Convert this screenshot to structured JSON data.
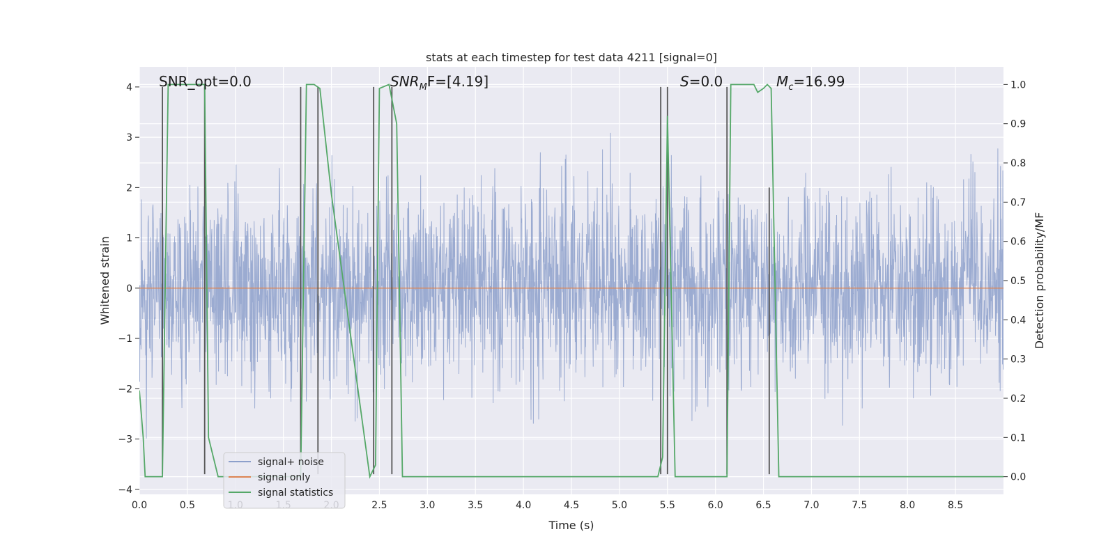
{
  "chart_data": {
    "type": "line",
    "title": "stats at each timestep for test data 4211 [signal=0]",
    "xlabel": "Time (s)",
    "ylabel": "Whitened strain",
    "y2label": "Detection probability/MF",
    "xlim": [
      0,
      9.0
    ],
    "ylim": [
      -4.1,
      4.4
    ],
    "y2lim": [
      -0.045,
      1.045
    ],
    "xticks": [
      0.0,
      0.5,
      1.0,
      1.5,
      2.0,
      2.5,
      3.0,
      3.5,
      4.0,
      4.5,
      5.0,
      5.5,
      6.0,
      6.5,
      7.0,
      7.5,
      8.0,
      8.5
    ],
    "xtick_labels": [
      "0.0",
      "0.5",
      "1.0",
      "1.5",
      "2.0",
      "2.5",
      "3.0",
      "3.5",
      "4.0",
      "4.5",
      "5.0",
      "5.5",
      "6.0",
      "6.5",
      "7.0",
      "7.5",
      "8.0",
      "8.5"
    ],
    "yticks": [
      4,
      3,
      2,
      1,
      0,
      -1,
      -2,
      -3,
      -4
    ],
    "ytick_labels": [
      "4",
      "3",
      "2",
      "1",
      "0",
      "−1",
      "−2",
      "−3",
      "−4"
    ],
    "y2ticks": [
      1.0,
      0.9,
      0.8,
      0.7,
      0.6,
      0.5,
      0.4,
      0.3,
      0.2,
      0.1,
      0.0
    ],
    "y2tick_labels": [
      "1.0",
      "0.9",
      "0.8",
      "0.7",
      "0.6",
      "0.5",
      "0.4",
      "0.3",
      "0.2",
      "0.1",
      "0.0"
    ],
    "annotations": {
      "snr_opt": "SNR_opt=0.0",
      "snr_mf_main": "SNR",
      "snr_mf_sub": "M",
      "snr_mf_tail": "F=[4.19]",
      "s_main": "S",
      "s_tail": "=0.0",
      "mc_main": "M",
      "mc_sub": "c",
      "mc_tail": "=16.99"
    },
    "legend": {
      "position": "lower-left",
      "entries": [
        {
          "label": "signal+ noise",
          "color": "#8da0cb"
        },
        {
          "label": "signal only",
          "color": "#dd8452"
        },
        {
          "label": "signal statistics",
          "color": "#55a868"
        }
      ]
    },
    "series": [
      {
        "name": "signal+ noise",
        "kind": "noise",
        "axis": "left",
        "color": "#8da0cb",
        "sigma": 1.0,
        "num_samples": 2600,
        "duration": 9.0
      },
      {
        "name": "signal only",
        "kind": "line",
        "axis": "left",
        "color": "#dd8452",
        "x": [
          0.0,
          9.0
        ],
        "y": [
          0.0,
          0.0
        ]
      },
      {
        "name": "signal statistics",
        "kind": "line",
        "axis": "right",
        "color": "#55a868",
        "x": [
          0.0,
          0.04,
          0.06,
          0.24,
          0.3,
          0.68,
          0.72,
          0.82,
          1.68,
          1.74,
          1.82,
          1.88,
          2.0,
          2.4,
          2.46,
          2.5,
          2.6,
          2.68,
          2.74,
          3.2,
          3.3,
          5.4,
          5.45,
          5.5,
          5.58,
          6.12,
          6.16,
          6.4,
          6.44,
          6.5,
          6.54,
          6.58,
          6.66,
          6.85,
          6.9,
          9.0
        ],
        "y": [
          0.22,
          0.1,
          0.0,
          0.0,
          1.0,
          1.0,
          0.1,
          0.0,
          0.0,
          1.0,
          1.0,
          0.99,
          0.72,
          0.0,
          0.03,
          0.99,
          1.0,
          0.9,
          0.0,
          0.0,
          0.0,
          0.0,
          0.05,
          0.92,
          0.0,
          0.0,
          1.0,
          1.0,
          0.98,
          0.99,
          1.0,
          0.99,
          0.0,
          0.0,
          0.0,
          0.0
        ]
      },
      {
        "name": "detection markers",
        "kind": "vlines",
        "axis": "left",
        "color": "#555555",
        "x": [
          0.24,
          0.68,
          1.68,
          1.86,
          2.44,
          2.63,
          5.43,
          5.5,
          6.12,
          6.56
        ],
        "ymin": [
          -3.7,
          -3.7,
          -3.7,
          -3.7,
          -3.7,
          -3.7,
          -3.7,
          -3.7,
          -3.7,
          -3.7
        ],
        "ymax": [
          4.0,
          4.0,
          4.0,
          4.0,
          4.0,
          4.0,
          4.0,
          4.0,
          4.0,
          2.0
        ]
      }
    ]
  }
}
